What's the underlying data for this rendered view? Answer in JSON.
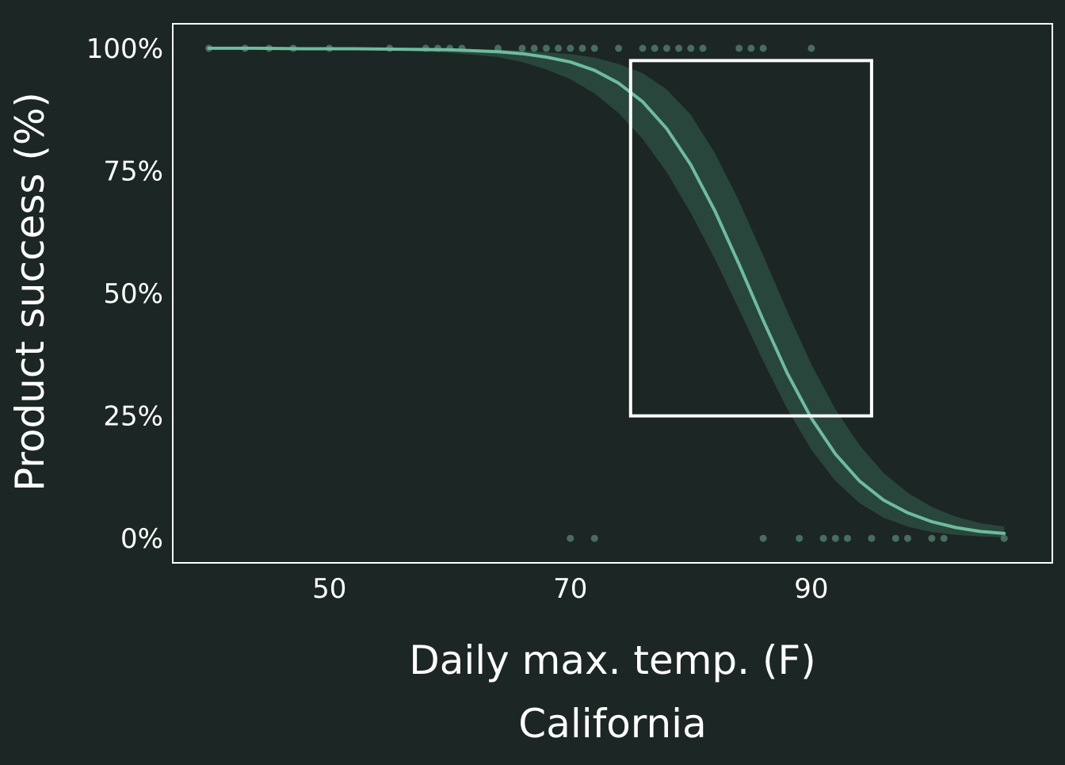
{
  "chart_data": {
    "type": "scatter",
    "xlabel": "Daily max. temp. (F)",
    "subtitle": "California",
    "ylabel": "Product success (%)",
    "xlim": [
      37,
      110
    ],
    "ylim": [
      -0.05,
      1.05
    ],
    "x_ticks": [
      50,
      70,
      90
    ],
    "x_tick_labels": [
      "50",
      "70",
      "90"
    ],
    "y_ticks": [
      0,
      0.25,
      0.5,
      0.75,
      1.0
    ],
    "y_tick_labels": [
      "0%",
      "25%",
      "50%",
      "75%",
      "100%"
    ],
    "grid": false,
    "series": [
      {
        "type": "scatter",
        "x": [
          40,
          43,
          45,
          47,
          50,
          55,
          58,
          59,
          60,
          61,
          64,
          66,
          67,
          68,
          69,
          70,
          71,
          72,
          74,
          76,
          77,
          78,
          79,
          80,
          81,
          84,
          85,
          86,
          90,
          70,
          72,
          86,
          89,
          91,
          92,
          93,
          95,
          97,
          98,
          100,
          101,
          106
        ],
        "y": [
          1,
          1,
          1,
          1,
          1,
          1,
          1,
          1,
          1,
          1,
          1,
          1,
          1,
          1,
          1,
          1,
          1,
          1,
          1,
          1,
          1,
          1,
          1,
          1,
          1,
          1,
          1,
          1,
          1,
          0,
          0,
          0,
          0,
          0,
          0,
          0,
          0,
          0,
          0,
          0,
          0,
          0
        ]
      },
      {
        "type": "line",
        "fit": "logistic",
        "x": [
          40,
          44,
          48,
          52,
          56,
          60,
          64,
          66,
          68,
          70,
          72,
          74,
          76,
          78,
          80,
          82,
          84,
          86,
          88,
          90,
          92,
          94,
          96,
          98,
          100,
          102,
          104,
          106
        ],
        "y": [
          1.0,
          1.0,
          0.999,
          0.999,
          0.998,
          0.997,
          0.993,
          0.989,
          0.982,
          0.972,
          0.955,
          0.929,
          0.891,
          0.836,
          0.762,
          0.668,
          0.559,
          0.445,
          0.337,
          0.245,
          0.172,
          0.117,
          0.078,
          0.052,
          0.034,
          0.022,
          0.014,
          0.01
        ],
        "lower": [
          1.0,
          1.0,
          0.998,
          0.997,
          0.995,
          0.991,
          0.982,
          0.972,
          0.957,
          0.937,
          0.908,
          0.868,
          0.815,
          0.747,
          0.664,
          0.57,
          0.467,
          0.362,
          0.264,
          0.181,
          0.117,
          0.072,
          0.042,
          0.024,
          0.013,
          0.007,
          0.004,
          0.002
        ],
        "upper": [
          1.0,
          1.0,
          1.0,
          1.0,
          0.999,
          0.999,
          0.997,
          0.995,
          0.992,
          0.988,
          0.981,
          0.968,
          0.949,
          0.916,
          0.864,
          0.786,
          0.688,
          0.577,
          0.463,
          0.355,
          0.263,
          0.19,
          0.133,
          0.093,
          0.064,
          0.044,
          0.031,
          0.024
        ]
      }
    ],
    "annotations": [
      {
        "type": "rectangle",
        "x0": 75,
        "x1": 95,
        "y0": 0.25,
        "y1": 0.975
      }
    ],
    "colors": {
      "background": "#1c2624",
      "axis": "#ffffff",
      "points": "#4f7a6c",
      "ribbon": "#2b4a3f",
      "line": "#6dbc9e",
      "annotation": "#ffffff",
      "text": "#ffffff"
    }
  }
}
